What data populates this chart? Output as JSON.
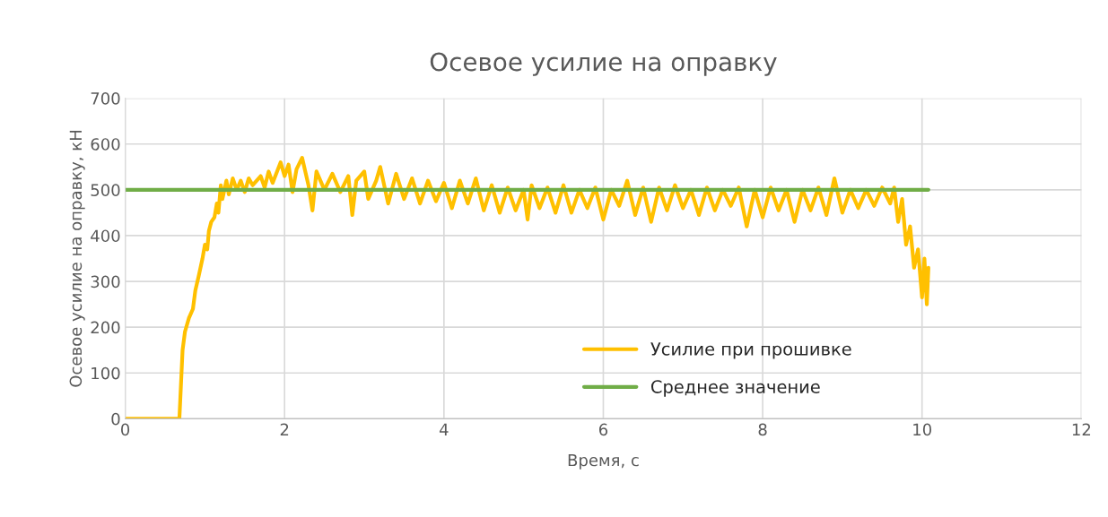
{
  "chart_data": {
    "type": "line",
    "title": "Осевое усилие на оправку",
    "xlabel": "Время, с",
    "ylabel": "Осевое усилие на оправку, кН",
    "xlim": [
      0,
      12
    ],
    "xticks": [
      0,
      2,
      4,
      6,
      8,
      10,
      12
    ],
    "ylim": [
      0,
      700
    ],
    "yticks": [
      0,
      100,
      200,
      300,
      400,
      500,
      600,
      700
    ],
    "grid": true,
    "legend": "bottom",
    "line_style": "solid",
    "series": [
      {
        "name": "Усилие при прошивке",
        "color": "#ffc000",
        "x": [
          0,
          0.68,
          0.72,
          0.75,
          0.8,
          0.85,
          0.88,
          0.92,
          0.97,
          1.0,
          1.03,
          1.05,
          1.08,
          1.12,
          1.15,
          1.17,
          1.2,
          1.22,
          1.27,
          1.3,
          1.35,
          1.4,
          1.45,
          1.5,
          1.55,
          1.6,
          1.7,
          1.75,
          1.8,
          1.85,
          1.95,
          2.0,
          2.05,
          2.1,
          2.15,
          2.22,
          2.3,
          2.35,
          2.4,
          2.5,
          2.6,
          2.7,
          2.8,
          2.85,
          2.9,
          3.0,
          3.05,
          3.15,
          3.2,
          3.3,
          3.4,
          3.5,
          3.6,
          3.7,
          3.8,
          3.9,
          4.0,
          4.1,
          4.2,
          4.3,
          4.4,
          4.5,
          4.6,
          4.7,
          4.8,
          4.9,
          5.0,
          5.05,
          5.1,
          5.2,
          5.3,
          5.4,
          5.5,
          5.6,
          5.7,
          5.8,
          5.9,
          6.0,
          6.1,
          6.2,
          6.3,
          6.4,
          6.5,
          6.6,
          6.7,
          6.8,
          6.9,
          7.0,
          7.1,
          7.2,
          7.3,
          7.4,
          7.5,
          7.6,
          7.7,
          7.8,
          7.9,
          8.0,
          8.1,
          8.2,
          8.3,
          8.4,
          8.5,
          8.6,
          8.7,
          8.8,
          8.9,
          9.0,
          9.1,
          9.2,
          9.3,
          9.4,
          9.5,
          9.6,
          9.65,
          9.7,
          9.75,
          9.8,
          9.85,
          9.9,
          9.95,
          10.0,
          10.03,
          10.06,
          10.08
        ],
        "values": [
          0,
          0,
          150,
          190,
          220,
          240,
          280,
          310,
          350,
          380,
          370,
          410,
          430,
          440,
          470,
          450,
          510,
          480,
          520,
          490,
          525,
          500,
          520,
          495,
          525,
          510,
          530,
          505,
          540,
          515,
          560,
          530,
          555,
          495,
          545,
          570,
          510,
          455,
          540,
          500,
          535,
          495,
          530,
          445,
          520,
          540,
          480,
          520,
          550,
          470,
          535,
          480,
          525,
          470,
          520,
          475,
          515,
          460,
          520,
          470,
          525,
          455,
          510,
          450,
          505,
          455,
          500,
          435,
          510,
          460,
          505,
          450,
          510,
          450,
          500,
          460,
          505,
          435,
          500,
          465,
          520,
          445,
          505,
          430,
          505,
          455,
          510,
          460,
          500,
          445,
          505,
          455,
          500,
          465,
          505,
          420,
          500,
          440,
          505,
          455,
          500,
          430,
          500,
          455,
          505,
          445,
          525,
          450,
          500,
          460,
          500,
          465,
          505,
          470,
          505,
          430,
          480,
          380,
          420,
          330,
          370,
          265,
          350,
          250,
          330
        ]
      },
      {
        "name": "Среднее значение",
        "color": "#70ad47",
        "x": [
          0,
          10.08
        ],
        "values": [
          500,
          500
        ]
      }
    ]
  }
}
